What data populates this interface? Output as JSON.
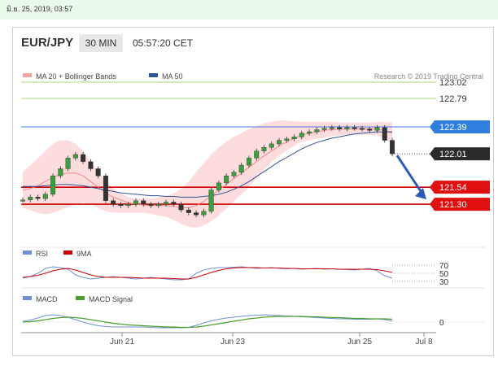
{
  "timestamp": "มิ.ย. 25, 2019, 03:57",
  "header": {
    "symbol": "EUR/JPY",
    "timeframe": "30 MIN",
    "time": "05:57:20 CET"
  },
  "legend_price": [
    {
      "label": "MA 20 + Bollinger Bands",
      "color": "#f4a3a3"
    },
    {
      "label": "MA 50",
      "color": "#2f5597"
    }
  ],
  "legend_rsi": [
    {
      "label": "RSI",
      "color": "#6f8fd6"
    },
    {
      "label": "9MA",
      "color": "#cc0000"
    }
  ],
  "legend_macd": [
    {
      "label": "MACD",
      "color": "#6f8fd6"
    },
    {
      "label": "MACD Signal",
      "color": "#4aa02c"
    }
  ],
  "credit": "Research © 2019 Trading Central",
  "chart_data": {
    "type": "line",
    "x_ticks": [
      "Jun 21",
      "Jun 23",
      "Jun 25",
      "Jul 8"
    ],
    "levels": [
      {
        "value": 123.02,
        "label": "123.02",
        "style": "green-line"
      },
      {
        "value": 122.79,
        "label": "122.79",
        "style": "green-line"
      },
      {
        "value": 122.39,
        "label": "122.39",
        "style": "blue-tag"
      },
      {
        "value": 122.01,
        "label": "122.01",
        "style": "current-price"
      },
      {
        "value": 121.54,
        "label": "121.54",
        "style": "red-tag"
      },
      {
        "value": 121.3,
        "label": "121.30",
        "style": "red-tag"
      }
    ],
    "price": [
      121.36,
      121.4,
      121.38,
      121.44,
      121.7,
      121.8,
      121.95,
      122.0,
      121.9,
      121.8,
      121.7,
      121.35,
      121.3,
      121.28,
      121.3,
      121.35,
      121.3,
      121.28,
      121.3,
      121.33,
      121.3,
      121.22,
      121.18,
      121.15,
      121.2,
      121.5,
      121.6,
      121.7,
      121.75,
      121.85,
      121.95,
      122.05,
      122.1,
      122.15,
      122.2,
      122.22,
      122.25,
      122.3,
      122.32,
      122.35,
      122.37,
      122.38,
      122.36,
      122.38,
      122.37,
      122.36,
      122.34,
      122.38,
      122.2,
      122.01
    ],
    "ma20": [
      121.5,
      121.52,
      121.56,
      121.62,
      121.68,
      121.72,
      121.74,
      121.74,
      121.7,
      121.62,
      121.54,
      121.46,
      121.4,
      121.36,
      121.32,
      121.3,
      121.29,
      121.28,
      121.28,
      121.28,
      121.27,
      121.25,
      121.25,
      121.28,
      121.34,
      121.42,
      121.5,
      121.58,
      121.66,
      121.74,
      121.82,
      121.9,
      121.98,
      122.05,
      122.12,
      122.18,
      122.23,
      122.27,
      122.3,
      122.32,
      122.34,
      122.35,
      122.36,
      122.36,
      122.36,
      122.36,
      122.36,
      122.36,
      122.34,
      122.3
    ],
    "ma50": [
      121.55,
      121.55,
      121.55,
      121.56,
      121.57,
      121.58,
      121.58,
      121.57,
      121.56,
      121.54,
      121.52,
      121.5,
      121.48,
      121.46,
      121.45,
      121.44,
      121.43,
      121.42,
      121.42,
      121.41,
      121.41,
      121.4,
      121.4,
      121.4,
      121.41,
      121.42,
      121.44,
      121.47,
      121.51,
      121.56,
      121.62,
      121.69,
      121.76,
      121.83,
      121.9,
      121.96,
      122.02,
      122.08,
      122.13,
      122.17,
      122.2,
      122.23,
      122.25,
      122.27,
      122.29,
      122.3,
      122.31,
      122.32,
      122.32,
      122.32
    ],
    "bb_upper": [
      121.75,
      121.85,
      121.95,
      122.05,
      122.15,
      122.2,
      122.2,
      122.15,
      122.05,
      121.9,
      121.75,
      121.62,
      121.52,
      121.45,
      121.4,
      121.38,
      121.38,
      121.38,
      121.4,
      121.42,
      121.45,
      121.52,
      121.62,
      121.75,
      121.88,
      122.0,
      122.1,
      122.18,
      122.25,
      122.3,
      122.36,
      122.4,
      122.44,
      122.46,
      122.48,
      122.48,
      122.47,
      122.46,
      122.46,
      122.46,
      122.46,
      122.46,
      122.45,
      122.45,
      122.45,
      122.45,
      122.45,
      122.46,
      122.46,
      122.45
    ],
    "bb_lower": [
      121.25,
      121.22,
      121.18,
      121.16,
      121.18,
      121.22,
      121.26,
      121.3,
      121.32,
      121.3,
      121.25,
      121.2,
      121.18,
      121.18,
      121.18,
      121.18,
      121.18,
      121.16,
      121.14,
      121.12,
      121.08,
      121.02,
      120.98,
      120.97,
      121.0,
      121.06,
      121.14,
      121.24,
      121.34,
      121.44,
      121.54,
      121.66,
      121.78,
      121.9,
      121.98,
      122.06,
      122.12,
      122.18,
      122.2,
      122.22,
      122.24,
      122.26,
      122.27,
      122.28,
      122.28,
      122.28,
      122.28,
      122.27,
      122.22,
      122.15
    ],
    "rsi": [
      38,
      42,
      50,
      62,
      66,
      64,
      60,
      46,
      40,
      36,
      38,
      40,
      42,
      40,
      38,
      36,
      38,
      40,
      38,
      36,
      34,
      34,
      36,
      50,
      58,
      62,
      64,
      64,
      65,
      66,
      64,
      62,
      63,
      64,
      62,
      61,
      62,
      60,
      61,
      62,
      60,
      61,
      60,
      59,
      58,
      60,
      62,
      56,
      44,
      38
    ],
    "rsi_9ma": [
      40,
      42,
      45,
      50,
      56,
      60,
      62,
      58,
      52,
      46,
      42,
      40,
      40,
      40,
      40,
      39,
      38,
      38,
      38,
      38,
      37,
      36,
      36,
      40,
      46,
      52,
      57,
      61,
      63,
      64,
      64,
      64,
      63,
      63,
      63,
      62,
      62,
      61,
      61,
      61,
      61,
      61,
      60,
      60,
      60,
      60,
      60,
      59,
      56,
      52
    ],
    "rsi_levels": [
      70,
      50,
      30
    ],
    "macd": [
      0.02,
      0.05,
      0.1,
      0.16,
      0.18,
      0.16,
      0.12,
      0.06,
      0.0,
      -0.05,
      -0.09,
      -0.11,
      -0.12,
      -0.12,
      -0.12,
      -0.12,
      -0.12,
      -0.13,
      -0.14,
      -0.14,
      -0.14,
      -0.14,
      -0.13,
      -0.08,
      -0.02,
      0.03,
      0.07,
      0.1,
      0.12,
      0.14,
      0.16,
      0.17,
      0.18,
      0.17,
      0.16,
      0.15,
      0.14,
      0.13,
      0.12,
      0.11,
      0.1,
      0.09,
      0.08,
      0.08,
      0.07,
      0.07,
      0.07,
      0.08,
      0.06,
      0.03
    ],
    "macd_signal": [
      0.0,
      0.01,
      0.03,
      0.06,
      0.09,
      0.11,
      0.12,
      0.11,
      0.09,
      0.06,
      0.03,
      0.0,
      -0.03,
      -0.05,
      -0.07,
      -0.08,
      -0.09,
      -0.1,
      -0.11,
      -0.12,
      -0.12,
      -0.13,
      -0.13,
      -0.12,
      -0.1,
      -0.07,
      -0.04,
      -0.01,
      0.02,
      0.05,
      0.08,
      0.1,
      0.12,
      0.13,
      0.14,
      0.14,
      0.14,
      0.14,
      0.13,
      0.13,
      0.12,
      0.11,
      0.11,
      0.1,
      0.09,
      0.09,
      0.08,
      0.08,
      0.08,
      0.07
    ],
    "macd_zero_label": "0",
    "ylim": [
      120.9,
      123.1
    ]
  }
}
